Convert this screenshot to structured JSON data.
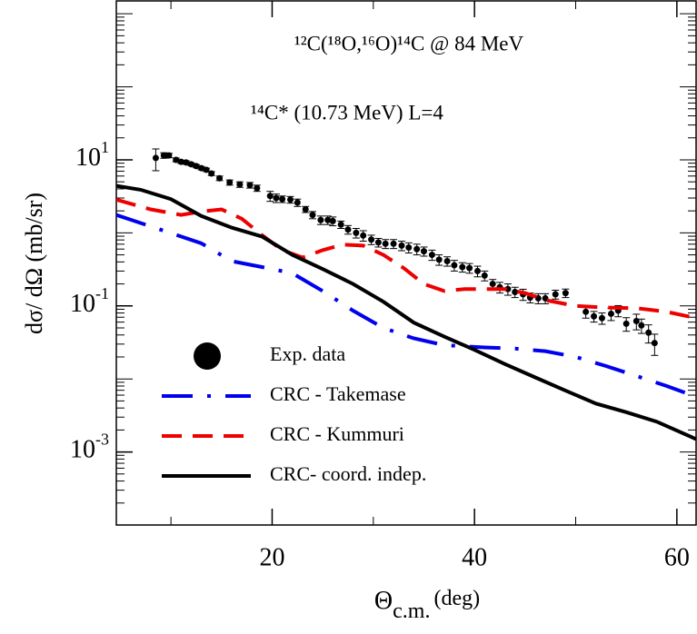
{
  "chart_data": {
    "type": "line",
    "annotations": [
      "¹²C(¹⁸O,¹⁶O)¹⁴C @ 84 MeV",
      "¹⁴C* (10.73 MeV) L=4"
    ],
    "y_label": "dσ/ dΩ (mb/sr)",
    "x_label": {
      "symbol": "Θ",
      "subscript": "c.m.",
      "unit": "(deg)"
    },
    "xlim": [
      4.6,
      61.9
    ],
    "xticks": [
      20,
      40,
      60
    ],
    "ylim": [
      0.0001,
      1500
    ],
    "log_y": true,
    "yticks": [
      {
        "value": 10,
        "label": "10^1"
      },
      {
        "value": 0.1,
        "label": "10^-1"
      },
      {
        "value": 0.001,
        "label": "10^-3"
      }
    ],
    "legend": "lower left",
    "series": [
      {
        "name": "Exp. data",
        "color": "#000000",
        "style": "markers",
        "x": [
          8.5,
          9.3,
          9.8,
          10.5,
          11,
          11.5,
          12,
          12.5,
          13,
          13.5,
          14,
          14.8,
          15.8,
          16.8,
          17.8,
          18.5,
          19.8,
          20.4,
          21,
          21.8,
          22.5,
          23.3,
          24,
          24.8,
          25.5,
          26,
          26.8,
          27.5,
          28.3,
          29,
          29.8,
          30.5,
          31.2,
          32,
          32.8,
          33.5,
          34.3,
          35,
          35.8,
          36.5,
          37.3,
          38,
          38.8,
          39.5,
          40.3,
          41,
          41.8,
          42.5,
          43.3,
          44,
          44.8,
          45.5,
          46.3,
          47,
          48,
          49,
          51,
          51.8,
          52.6,
          53.5,
          54.2,
          55,
          56,
          56.5,
          57.2,
          57.8
        ],
        "values": [
          10.6,
          11.5,
          11.5,
          10,
          9.4,
          9.2,
          8.7,
          8.2,
          7.7,
          7.3,
          6.5,
          5.6,
          4.9,
          4.6,
          4.5,
          4.1,
          3.2,
          3.0,
          2.9,
          2.85,
          2.6,
          2.1,
          1.76,
          1.5,
          1.5,
          1.45,
          1.3,
          1.11,
          1.0,
          0.92,
          0.81,
          0.74,
          0.71,
          0.71,
          0.67,
          0.63,
          0.6,
          0.56,
          0.5,
          0.43,
          0.41,
          0.36,
          0.34,
          0.33,
          0.3,
          0.26,
          0.2,
          0.18,
          0.17,
          0.155,
          0.144,
          0.13,
          0.127,
          0.127,
          0.144,
          0.15,
          0.083,
          0.072,
          0.068,
          0.078,
          0.086,
          0.057,
          0.062,
          0.054,
          0.043,
          0.031
        ],
        "errors": [
          3.5,
          1.0,
          0.8,
          0.6,
          0.5,
          0.5,
          0.4,
          0.4,
          0.4,
          0.4,
          0.4,
          0.4,
          0.4,
          0.4,
          0.4,
          0.4,
          0.5,
          0.4,
          0.3,
          0.3,
          0.3,
          0.2,
          0.2,
          0.2,
          0.2,
          0.2,
          0.15,
          0.15,
          0.15,
          0.15,
          0.12,
          0.1,
          0.1,
          0.1,
          0.1,
          0.1,
          0.1,
          0.08,
          0.08,
          0.07,
          0.06,
          0.06,
          0.05,
          0.05,
          0.05,
          0.04,
          0.03,
          0.03,
          0.03,
          0.025,
          0.025,
          0.02,
          0.02,
          0.02,
          0.02,
          0.02,
          0.015,
          0.012,
          0.012,
          0.015,
          0.015,
          0.012,
          0.015,
          0.012,
          0.012,
          0.01
        ]
      },
      {
        "name": "CRC - Takemase",
        "color": "#0000ee",
        "style": "dashdot",
        "x": [
          4.6,
          13,
          16,
          19,
          22,
          25,
          28,
          31,
          34,
          37,
          41,
          44,
          47,
          50,
          53,
          56,
          59,
          61.9
        ],
        "values": [
          1.76,
          0.72,
          0.41,
          0.34,
          0.28,
          0.16,
          0.086,
          0.05,
          0.036,
          0.029,
          0.027,
          0.026,
          0.024,
          0.02,
          0.015,
          0.011,
          0.008,
          0.0057
        ]
      },
      {
        "name": "CRC - Kummuri",
        "color": "#ee0000",
        "style": "dash",
        "x": [
          4.6,
          8,
          11,
          13,
          15,
          17,
          19,
          21,
          23,
          25,
          27,
          29,
          31,
          33,
          35,
          37,
          39,
          41,
          43,
          45,
          47,
          50,
          53,
          56,
          59,
          61.9
        ],
        "values": [
          2.85,
          2.1,
          1.76,
          1.96,
          2.1,
          1.56,
          0.93,
          0.58,
          0.46,
          0.58,
          0.69,
          0.67,
          0.5,
          0.33,
          0.2,
          0.16,
          0.17,
          0.17,
          0.17,
          0.15,
          0.12,
          0.1,
          0.095,
          0.093,
          0.083,
          0.068
        ]
      },
      {
        "name": "CRC- coord. indep.",
        "color": "#000000",
        "style": "solid",
        "x": [
          4.6,
          7,
          10,
          13,
          16,
          19,
          22,
          25,
          28,
          31,
          34,
          37,
          40,
          43,
          46,
          49,
          52,
          55,
          58,
          61.9
        ],
        "values": [
          4.4,
          3.9,
          2.9,
          1.7,
          1.18,
          0.89,
          0.5,
          0.32,
          0.2,
          0.114,
          0.059,
          0.038,
          0.025,
          0.016,
          0.0105,
          0.0069,
          0.0046,
          0.0035,
          0.0026,
          0.0015
        ]
      }
    ]
  }
}
